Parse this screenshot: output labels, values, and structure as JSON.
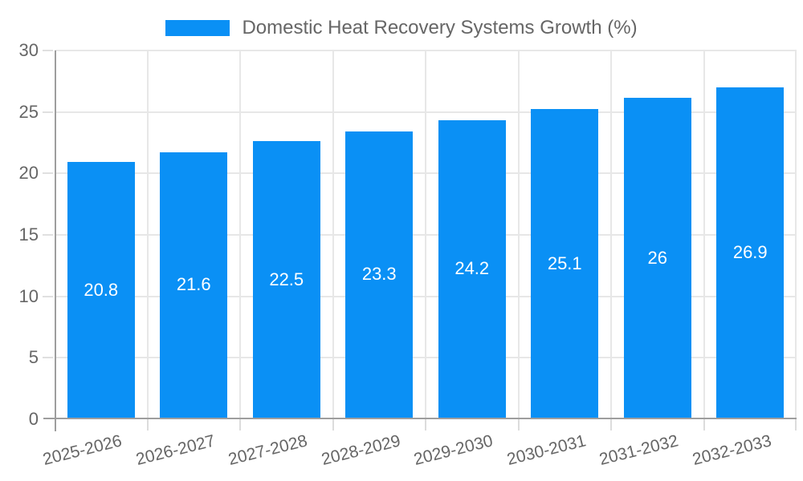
{
  "chart_data": {
    "type": "bar",
    "legend": {
      "label": "Domestic Heat Recovery Systems Growth (%)",
      "position": "top"
    },
    "categories": [
      "2025-2026",
      "2026-2027",
      "2027-2028",
      "2028-2029",
      "2029-2030",
      "2030-2031",
      "2031-2032",
      "2032-2033"
    ],
    "values": [
      20.8,
      21.6,
      22.5,
      23.3,
      24.2,
      25.1,
      26,
      26.9
    ],
    "value_labels": [
      "20.8",
      "21.6",
      "22.5",
      "23.3",
      "24.2",
      "25.1",
      "26",
      "26.9"
    ],
    "xlabel": "",
    "ylabel": "",
    "ylim": [
      0,
      30
    ],
    "yticks": [
      0,
      5,
      10,
      15,
      20,
      25,
      30
    ],
    "grid": true,
    "colors": {
      "bar": "#0a90f5",
      "value_label": "#ffffff",
      "axis_text": "#666666",
      "grid_line": "#e7e7e7",
      "axis_line": "#9e9e9e",
      "background": "#ffffff"
    }
  }
}
